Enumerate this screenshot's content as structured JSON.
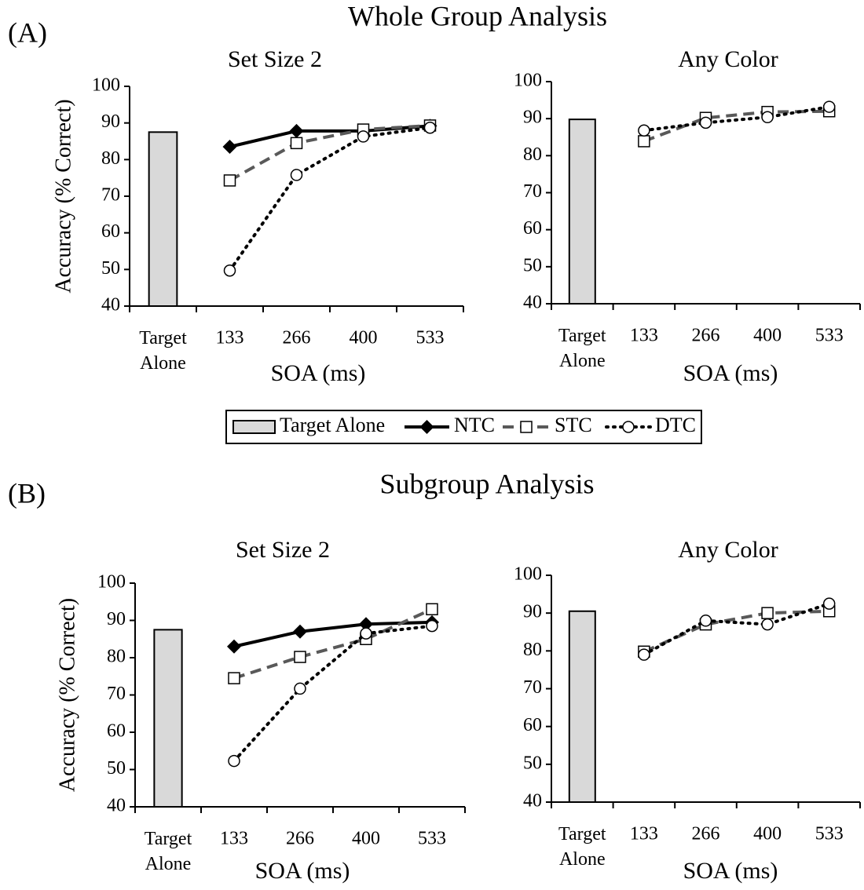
{
  "panels": [
    {
      "label": "(A)",
      "title": "Whole Group Analysis"
    },
    {
      "label": "(B)",
      "title": "Subgroup Analysis"
    }
  ],
  "chart_data": [
    {
      "type": "combo",
      "title": "Set Size 2",
      "xlabel": "SOA (ms)",
      "ylabel": "Accuracy (% Correct)",
      "categories": [
        "Target Alone",
        "133",
        "266",
        "400",
        "533"
      ],
      "ylim": [
        40,
        100
      ],
      "yticks": [
        40,
        50,
        60,
        70,
        80,
        90,
        100
      ],
      "series": [
        {
          "name": "Target Alone",
          "type": "bar",
          "color": "#d9d9d9",
          "values": [
            87.5,
            null,
            null,
            null,
            null
          ]
        },
        {
          "name": "NTC",
          "type": "line",
          "color": "#000000",
          "dash": "solid",
          "marker": "diamond",
          "values": [
            null,
            83.5,
            87.8,
            87.8,
            89.2
          ]
        },
        {
          "name": "STC",
          "type": "line",
          "color": "#595959",
          "dash": "dashed",
          "marker": "square",
          "values": [
            null,
            74.3,
            84.5,
            88.2,
            89.3
          ]
        },
        {
          "name": "DTC",
          "type": "line",
          "color": "#000000",
          "dash": "dotted",
          "marker": "circle",
          "values": [
            null,
            49.7,
            75.8,
            86.3,
            88.7
          ]
        }
      ]
    },
    {
      "type": "combo",
      "title": "Any Color",
      "xlabel": "SOA (ms)",
      "categories": [
        "Target Alone",
        "133",
        "266",
        "400",
        "533"
      ],
      "ylim": [
        40,
        100
      ],
      "yticks": [
        40,
        50,
        60,
        70,
        80,
        90,
        100
      ],
      "series": [
        {
          "name": "Target Alone",
          "type": "bar",
          "color": "#d9d9d9",
          "values": [
            89.8,
            null,
            null,
            null,
            null
          ]
        },
        {
          "name": "STC",
          "type": "line",
          "color": "#595959",
          "dash": "dashed",
          "marker": "square",
          "values": [
            null,
            83.9,
            90.2,
            91.8,
            92.0
          ]
        },
        {
          "name": "DTC",
          "type": "line",
          "color": "#000000",
          "dash": "dotted",
          "marker": "circle",
          "values": [
            null,
            86.8,
            88.9,
            90.4,
            93.2
          ]
        }
      ]
    },
    {
      "type": "combo",
      "title": "Set Size 2",
      "xlabel": "SOA (ms)",
      "ylabel": "Accuracy (% Correct)",
      "categories": [
        "Target Alone",
        "133",
        "266",
        "400",
        "533"
      ],
      "ylim": [
        40,
        100
      ],
      "yticks": [
        40,
        50,
        60,
        70,
        80,
        90,
        100
      ],
      "series": [
        {
          "name": "Target Alone",
          "type": "bar",
          "color": "#d9d9d9",
          "values": [
            87.5,
            null,
            null,
            null,
            null
          ]
        },
        {
          "name": "NTC",
          "type": "line",
          "color": "#000000",
          "dash": "solid",
          "marker": "diamond",
          "values": [
            null,
            83.0,
            87.0,
            89.0,
            89.5
          ]
        },
        {
          "name": "STC",
          "type": "line",
          "color": "#595959",
          "dash": "dashed",
          "marker": "square",
          "values": [
            null,
            74.5,
            80.2,
            85.0,
            93.0
          ]
        },
        {
          "name": "DTC",
          "type": "line",
          "color": "#000000",
          "dash": "dotted",
          "marker": "circle",
          "values": [
            null,
            52.3,
            71.7,
            86.5,
            88.5
          ]
        }
      ]
    },
    {
      "type": "combo",
      "title": "Any Color",
      "xlabel": "SOA (ms)",
      "categories": [
        "Target Alone",
        "133",
        "266",
        "400",
        "533"
      ],
      "ylim": [
        40,
        100
      ],
      "yticks": [
        40,
        50,
        60,
        70,
        80,
        90,
        100
      ],
      "series": [
        {
          "name": "Target Alone",
          "type": "bar",
          "color": "#d9d9d9",
          "values": [
            90.5,
            null,
            null,
            null,
            null
          ]
        },
        {
          "name": "STC",
          "type": "line",
          "color": "#595959",
          "dash": "dashed",
          "marker": "square",
          "values": [
            null,
            79.8,
            87.0,
            90.0,
            90.5
          ]
        },
        {
          "name": "DTC",
          "type": "line",
          "color": "#000000",
          "dash": "dotted",
          "marker": "circle",
          "values": [
            null,
            79.0,
            88.0,
            87.0,
            92.5
          ]
        }
      ]
    }
  ]
}
